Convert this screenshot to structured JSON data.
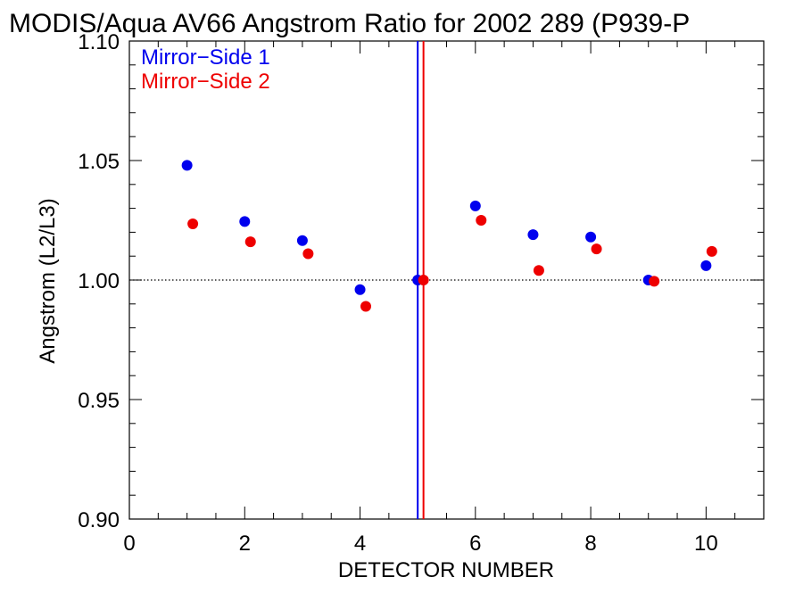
{
  "chart_data": {
    "type": "scatter",
    "title": "MODIS/Aqua AV66 Angstrom Ratio for 2002 289 (P939-P",
    "xlabel": "DETECTOR NUMBER",
    "ylabel": "Angstrom (L2/L3)",
    "xlim": [
      0,
      11
    ],
    "ylim": [
      0.9,
      1.1
    ],
    "x_ticks": [
      "0",
      "2",
      "4",
      "6",
      "8",
      "10"
    ],
    "y_ticks": [
      "0.90",
      "0.95",
      "1.00",
      "1.05",
      "1.10"
    ],
    "grid": false,
    "reference_line": {
      "y": 1.0,
      "style": "dotted"
    },
    "vertical_lines": [
      {
        "x": 5.0,
        "color": "#0000ee"
      },
      {
        "x": 5.1,
        "color": "#ee0000"
      }
    ],
    "legend_position": "top-left",
    "series": [
      {
        "name": "Mirror−Side 1",
        "color": "#0000ee",
        "x": [
          1,
          2,
          3,
          4,
          5,
          6,
          7,
          8,
          9,
          10
        ],
        "y": [
          1.048,
          1.0245,
          1.0165,
          0.996,
          1.0,
          1.031,
          1.019,
          1.018,
          1.0,
          1.006
        ]
      },
      {
        "name": "Mirror−Side 2",
        "color": "#ee0000",
        "x": [
          1.1,
          2.1,
          3.1,
          4.1,
          5.1,
          6.1,
          7.1,
          8.1,
          9.1,
          10.1
        ],
        "y": [
          1.0235,
          1.016,
          1.011,
          0.989,
          1.0,
          1.025,
          1.004,
          1.013,
          0.9995,
          1.012
        ]
      }
    ]
  }
}
